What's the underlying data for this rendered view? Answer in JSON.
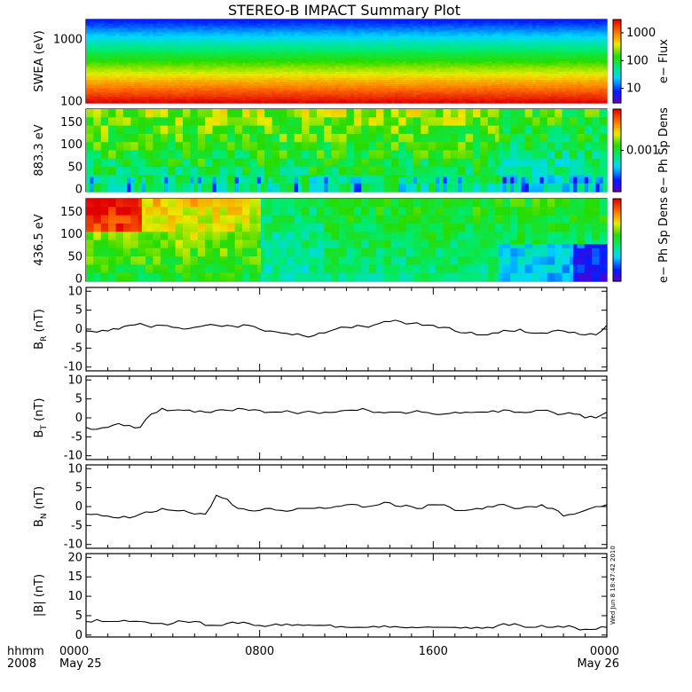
{
  "title": "STEREO-B IMPACT Summary Plot",
  "timestamp": "Wed Jun 8 18:47:42 2010",
  "time_axis": {
    "label_line1": "hhmm",
    "label_line2": "2008",
    "ticks": [
      {
        "hour": 0,
        "label": "0000",
        "date": "May 25"
      },
      {
        "hour": 8,
        "label": "0800",
        "date": ""
      },
      {
        "hour": 16,
        "label": "1600",
        "date": ""
      },
      {
        "hour": 24,
        "label": "0000",
        "date": "May 26"
      }
    ]
  },
  "chart_data": [
    {
      "type": "heatmap",
      "ylabel": "SWEA (eV)",
      "ylog": true,
      "ylim": [
        95,
        2100
      ],
      "yticks": [
        {
          "value": 100,
          "label": "100"
        },
        {
          "value": 1000,
          "label": "1000"
        }
      ],
      "colorbar": {
        "label": "e− Flux",
        "log": true,
        "range": [
          3,
          3000
        ],
        "ticks": [
          {
            "value": 10,
            "label": "10"
          },
          {
            "value": 100,
            "label": "100"
          },
          {
            "value": 1000,
            "label": "1000"
          }
        ]
      },
      "description_values": {
        "low_energy_flux": 3000,
        "high_energy_flux": 3
      }
    },
    {
      "type": "heatmap",
      "ylabel": "883.3 eV",
      "ylim": [
        -5,
        180
      ],
      "yticks": [
        0,
        50,
        100,
        150
      ],
      "colorbar": {
        "label": "e− Ph Sp Dens",
        "ticks": [
          {
            "value": 0.001,
            "label": "0.001"
          }
        ]
      }
    },
    {
      "type": "heatmap",
      "ylabel": "436.5 eV",
      "ylim": [
        -5,
        180
      ],
      "yticks": [
        0,
        50,
        100,
        150
      ],
      "colorbar": {
        "label": "e− Ph Sp Dens",
        "ticks": []
      }
    },
    {
      "type": "line",
      "ylabel": "B",
      "ysub": "R",
      "yunit": " (nT)",
      "ylim": [
        -11,
        11
      ],
      "yticks": [
        -10,
        -5,
        0,
        5,
        10
      ],
      "x": [
        0,
        0.5,
        1,
        1.5,
        2,
        2.5,
        3,
        3.5,
        4,
        4.5,
        5,
        5.5,
        6,
        6.5,
        7,
        7.5,
        8,
        8.5,
        9,
        9.5,
        10,
        10.5,
        11,
        11.5,
        12,
        12.5,
        13,
        13.5,
        14,
        14.5,
        15,
        15.5,
        16,
        16.5,
        17,
        17.5,
        18,
        18.5,
        19,
        19.5,
        20,
        20.5,
        21,
        21.5,
        22,
        22.5,
        23,
        23.5,
        24
      ],
      "y": [
        -0.5,
        -0.8,
        -0.5,
        0,
        1,
        1.5,
        0.5,
        1,
        0.5,
        0,
        0.5,
        1,
        1,
        1,
        0.5,
        1,
        0,
        -0.5,
        -1,
        -1.5,
        -1.7,
        -1.7,
        -1,
        0,
        0.5,
        1,
        0.5,
        1.5,
        2,
        2,
        1.5,
        1,
        1,
        0.5,
        -0.5,
        -1,
        -1.5,
        -1.5,
        -1,
        -0.5,
        0,
        -1,
        -1,
        -0.5,
        -0.5,
        -0.8,
        -1.5,
        -1.5,
        1
      ]
    },
    {
      "type": "line",
      "ylabel": "B",
      "ysub": "T",
      "yunit": " (nT)",
      "ylim": [
        -11,
        11
      ],
      "yticks": [
        -10,
        -5,
        0,
        5,
        10
      ],
      "x": [
        0,
        0.5,
        1,
        1.5,
        2,
        2.5,
        3,
        3.5,
        4,
        4.5,
        5,
        5.5,
        6,
        6.5,
        7,
        7.5,
        8,
        8.5,
        9,
        9.5,
        10,
        10.5,
        11,
        11.5,
        12,
        12.5,
        13,
        13.5,
        14,
        14.5,
        15,
        15.5,
        16,
        16.5,
        17,
        17.5,
        18,
        18.5,
        19,
        19.5,
        20,
        20.5,
        21,
        21.5,
        22,
        22.5,
        23,
        23.5,
        24
      ],
      "y": [
        -2.5,
        -3,
        -2.5,
        -1.5,
        -2,
        -2.5,
        1,
        2.5,
        2,
        2,
        1.5,
        1.5,
        2,
        2,
        2.5,
        2,
        2,
        1.5,
        1.5,
        1.5,
        1.5,
        1.5,
        1.5,
        1.5,
        2,
        2,
        2,
        1.5,
        1.5,
        1.5,
        1.5,
        1.5,
        1,
        1,
        1.5,
        1.5,
        1.5,
        1.5,
        1.5,
        2,
        1.5,
        1.5,
        2,
        1.5,
        1,
        1,
        0,
        0,
        1.5
      ]
    },
    {
      "type": "line",
      "ylabel": "B",
      "ysub": "N",
      "yunit": " (nT)",
      "ylim": [
        -11,
        11
      ],
      "yticks": [
        -10,
        -5,
        0,
        5,
        10
      ],
      "x": [
        0,
        0.5,
        1,
        1.5,
        2,
        2.5,
        3,
        3.5,
        4,
        4.5,
        5,
        5.5,
        6,
        6.5,
        7,
        7.5,
        8,
        8.5,
        9,
        9.5,
        10,
        10.5,
        11,
        11.5,
        12,
        12.5,
        13,
        13.5,
        14,
        14.5,
        15,
        15.5,
        16,
        16.5,
        17,
        17.5,
        18,
        18.5,
        19,
        19.5,
        20,
        20.5,
        21,
        21.5,
        22,
        22.5,
        23,
        23.5,
        24
      ],
      "y": [
        -2,
        -2,
        -2.5,
        -3,
        -3,
        -2,
        -1.5,
        -0.5,
        -1,
        -1,
        -2,
        -2,
        3,
        2,
        -0.5,
        -1,
        -1,
        -0.5,
        -1,
        -1,
        -0.5,
        -0.5,
        -0.5,
        0,
        0.5,
        0.5,
        0,
        0.5,
        1,
        0,
        0,
        -0.5,
        0.5,
        0.5,
        -1,
        -1,
        -0.5,
        0,
        0.5,
        0,
        -0.5,
        0,
        0.5,
        -0.5,
        -2.5,
        -2,
        -1,
        0,
        0.5
      ]
    },
    {
      "type": "line",
      "ylabel": "|B| (nT)",
      "ylim": [
        -0.5,
        21
      ],
      "yticks": [
        0,
        5,
        10,
        15,
        20
      ],
      "x": [
        0,
        0.5,
        1,
        1.5,
        2,
        2.5,
        3,
        3.5,
        4,
        4.5,
        5,
        5.5,
        6,
        6.5,
        7,
        7.5,
        8,
        8.5,
        9,
        9.5,
        10,
        10.5,
        11,
        11.5,
        12,
        12.5,
        13,
        13.5,
        14,
        14.5,
        15,
        15.5,
        16,
        16.5,
        17,
        17.5,
        18,
        18.5,
        19,
        19.5,
        20,
        20.5,
        21,
        21.5,
        22,
        22.5,
        23,
        23.5,
        24
      ],
      "y": [
        3.5,
        4,
        3.5,
        3.5,
        3.5,
        3.5,
        3,
        3,
        3,
        3.5,
        3.5,
        2.5,
        2.5,
        3,
        3,
        3,
        2.5,
        2.5,
        2.5,
        2.5,
        2.5,
        2.5,
        2.5,
        2,
        2,
        2,
        2,
        2,
        2,
        2,
        2,
        2,
        2,
        2,
        2,
        2,
        2,
        2,
        2.5,
        2.5,
        2.5,
        2,
        2.5,
        2,
        2,
        2,
        1.5,
        1.5,
        2
      ]
    }
  ]
}
